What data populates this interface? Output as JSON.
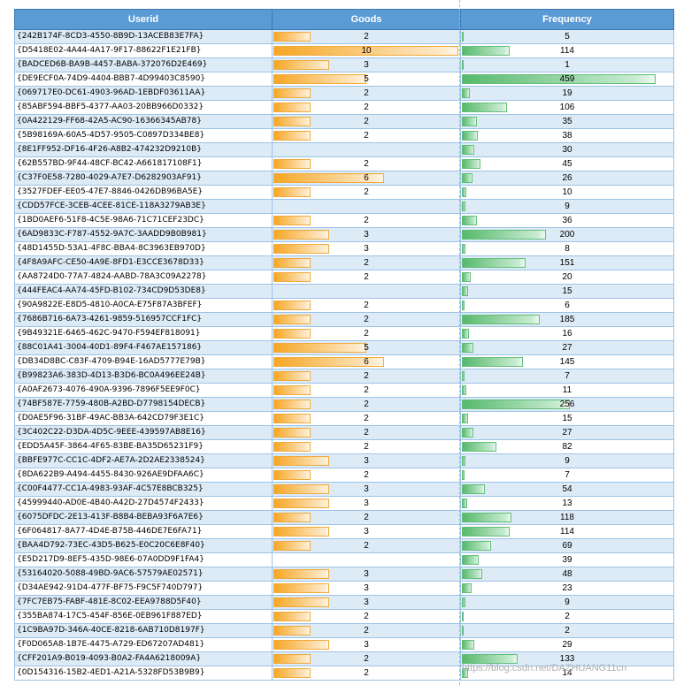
{
  "table": {
    "headers": {
      "userid": "Userid",
      "goods": "Goods",
      "frequency": "Frequency"
    },
    "max_goods": 10,
    "max_frequency": 459,
    "bar_colors": {
      "goods": "#f6a623",
      "frequency": "#63be7b"
    },
    "rows": [
      {
        "userid": "{242B174F-8CD3-4550-8B9D-13ACEB83E7FA}",
        "goods": 2,
        "frequency": 5
      },
      {
        "userid": "{D5418E02-4A44-4A17-9F17-88622F1E21FB}",
        "goods": 10,
        "frequency": 114
      },
      {
        "userid": "{BADCED6B-BA9B-4457-BABA-372076D2E469}",
        "goods": 3,
        "frequency": 1
      },
      {
        "userid": "{DE9ECF0A-74D9-4404-BBB7-4D99403C8590}",
        "goods": 5,
        "frequency": 459
      },
      {
        "userid": "{069717E0-DC61-4903-96AD-1EBDF03611AA}",
        "goods": 2,
        "frequency": 19
      },
      {
        "userid": "{85ABF594-BBF5-4377-AA03-20BB966D0332}",
        "goods": 2,
        "frequency": 106
      },
      {
        "userid": "{0A422129-FF68-42A5-AC90-16366345AB78}",
        "goods": 2,
        "frequency": 35
      },
      {
        "userid": "{5B98169A-60A5-4D57-9505-C0897D334BE8}",
        "goods": 2,
        "frequency": 38
      },
      {
        "userid": "{8E1FF952-DF16-4F26-A8B2-474232D9210B}",
        "goods": null,
        "frequency": 30
      },
      {
        "userid": "{62B557BD-9F44-48CF-BC42-A661817108F1}",
        "goods": 2,
        "frequency": 45
      },
      {
        "userid": "{C37F0E58-7280-4029-A7E7-D6282903AF91}",
        "goods": 6,
        "frequency": 26
      },
      {
        "userid": "{3527FDEF-EE05-47E7-8846-0426DB96BA5E}",
        "goods": 2,
        "frequency": 10
      },
      {
        "userid": "{CDD57FCE-3CEB-4CEE-81CE-118A3279AB3E}",
        "goods": null,
        "frequency": 9
      },
      {
        "userid": "{1BD0AEF6-51F8-4C5E-98A6-71C71CEF23DC}",
        "goods": 2,
        "frequency": 36
      },
      {
        "userid": "{6AD9833C-F787-4552-9A7C-3AADD9B0B981}",
        "goods": 3,
        "frequency": 200
      },
      {
        "userid": "{48D1455D-53A1-4F8C-BBA4-8C3963EB970D}",
        "goods": 3,
        "frequency": 8
      },
      {
        "userid": "{4F8A9AFC-CE50-4A9E-8FD1-E3CCE3678D33}",
        "goods": 2,
        "frequency": 151
      },
      {
        "userid": "{AA8724D0-77A7-4824-AABD-78A3C09A2278}",
        "goods": 2,
        "frequency": 20
      },
      {
        "userid": "{444FEAC4-AA74-45FD-B102-734CD9D53DE8}",
        "goods": null,
        "frequency": 15
      },
      {
        "userid": "{90A9822E-E8D5-4810-A0CA-E75F87A3BFEF}",
        "goods": 2,
        "frequency": 6
      },
      {
        "userid": "{7686B716-6A73-4261-9859-516957CCF1FC}",
        "goods": 2,
        "frequency": 185
      },
      {
        "userid": "{9B49321E-6465-462C-9470-F594EF818091}",
        "goods": 2,
        "frequency": 16
      },
      {
        "userid": "{88C01A41-3004-40D1-89F4-F467AE157186}",
        "goods": 5,
        "frequency": 27
      },
      {
        "userid": "{DB34D8BC-C83F-4709-B94E-16AD5777E79B}",
        "goods": 6,
        "frequency": 145
      },
      {
        "userid": "{B99823A6-383D-4D13-B3D6-BC0A496EE24B}",
        "goods": 2,
        "frequency": 7
      },
      {
        "userid": "{A0AF2673-4076-490A-9396-7896F5EE9F0C}",
        "goods": 2,
        "frequency": 11
      },
      {
        "userid": "{74BF587E-7759-480B-A2BD-D7798154DECB}",
        "goods": 2,
        "frequency": 256
      },
      {
        "userid": "{D0AE5F96-31BF-49AC-BB3A-642CD79F3E1C}",
        "goods": 2,
        "frequency": 15
      },
      {
        "userid": "{3C402C22-D3DA-4D5C-9EEE-439597AB8E16}",
        "goods": 2,
        "frequency": 27
      },
      {
        "userid": "{EDD5A45F-3864-4F65-83BE-BA35D65231F9}",
        "goods": 2,
        "frequency": 82
      },
      {
        "userid": "{BBFE977C-CC1C-4DF2-AE7A-2D2AE2338524}",
        "goods": 3,
        "frequency": 9
      },
      {
        "userid": "{8DA622B9-A494-4455-8430-926AE9DFAA6C}",
        "goods": 2,
        "frequency": 7
      },
      {
        "userid": "{C00F4477-CC1A-4983-93AF-4C57E8BCB325}",
        "goods": 3,
        "frequency": 54
      },
      {
        "userid": "{45999440-AD0E-4B40-A42D-27D4574F2433}",
        "goods": 3,
        "frequency": 13
      },
      {
        "userid": "{6075DFDC-2E13-413F-B8B4-BEBA93F6A7E6}",
        "goods": 2,
        "frequency": 118
      },
      {
        "userid": "{6F064817-8A77-4D4E-B75B-446DE7E6FA71}",
        "goods": 3,
        "frequency": 114
      },
      {
        "userid": "{BAA4D792-73EC-43D5-B625-E0C20C6E8F40}",
        "goods": 2,
        "frequency": 69
      },
      {
        "userid": "{E5D217D9-8EF5-435D-98E6-07A0DD9F1FA4}",
        "goods": null,
        "frequency": 39
      },
      {
        "userid": "{53164020-5088-49BD-9AC6-57579AE02571}",
        "goods": 3,
        "frequency": 48
      },
      {
        "userid": "{D34AE942-91D4-477F-BF75-F9C5F740D797}",
        "goods": 3,
        "frequency": 23
      },
      {
        "userid": "{7FC7EB75-FABF-481E-8C02-EEA9788D5F40}",
        "goods": 3,
        "frequency": 9
      },
      {
        "userid": "{355BA874-17C5-454F-856E-0EB961F887ED}",
        "goods": 2,
        "frequency": 2
      },
      {
        "userid": "{1C9BA97D-346A-40CE-8218-6AB710D8197F}",
        "goods": 2,
        "frequency": 2
      },
      {
        "userid": "{F0D065A8-1B7E-4475-A729-ED67207AD481}",
        "goods": 3,
        "frequency": 29
      },
      {
        "userid": "{CFF201A9-B019-4093-B0A2-FA4A6218009A}",
        "goods": 2,
        "frequency": 133
      },
      {
        "userid": "{0D154316-15B2-4ED1-A21A-5328FD53B9B9}",
        "goods": 2,
        "frequency": 14
      }
    ]
  },
  "watermark": "https://blog.csdn.net/DAZHUANG11cn"
}
